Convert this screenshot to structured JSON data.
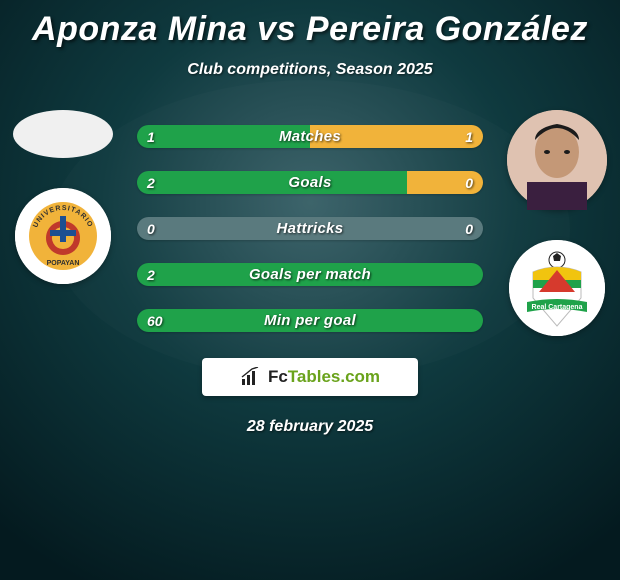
{
  "background": {
    "dark": "#041a1f",
    "mid": "#0f3a3f",
    "light_overlay": "#3a6168"
  },
  "title": "Aponza Mina vs Pereira González",
  "subtitle": "Club competitions, Season 2025",
  "date": "28 february 2025",
  "badge": {
    "text_prefix": "Fc",
    "text_suffix": "Tables.com",
    "icon_color": "#222222",
    "accent_color": "#6aa31c"
  },
  "player1": {
    "avatar_bg": "#f0f0f0",
    "club": {
      "bg": "#ffffff",
      "ring": "#e8e8e8",
      "inner_bg": "#f1b33a",
      "text": "POPAYAN",
      "text_color": "#2f2f2f",
      "accent_red": "#c0392b",
      "accent_blue": "#1d4f91"
    }
  },
  "player2": {
    "avatar_bg": "#d8b6a3",
    "club": {
      "bg": "#ffffff",
      "ball": "#222222",
      "stripe_yellow": "#f1c40f",
      "stripe_green": "#1fa24a",
      "stripe_red": "#d63a2d",
      "ribbon": "#1fa24a",
      "ribbon_text": "Real Cartagena",
      "ribbon_text_color": "#ffffff"
    }
  },
  "colors": {
    "p1_bar": "#1fa24a",
    "p2_bar": "#f1b33a",
    "neutral_bar": "#5a7a7e"
  },
  "stats": [
    {
      "label": "Matches",
      "p1": 1,
      "p2": 1,
      "p1_pct": 50,
      "p2_pct": 50
    },
    {
      "label": "Goals",
      "p1": 2,
      "p2": 0,
      "p1_pct": 78,
      "p2_pct": 22
    },
    {
      "label": "Hattricks",
      "p1": 0,
      "p2": 0,
      "p1_pct": 0,
      "p2_pct": 0
    },
    {
      "label": "Goals per match",
      "p1": 2,
      "p2": "",
      "p1_pct": 100,
      "p2_pct": 0
    },
    {
      "label": "Min per goal",
      "p1": 60,
      "p2": "",
      "p1_pct": 100,
      "p2_pct": 0
    }
  ]
}
